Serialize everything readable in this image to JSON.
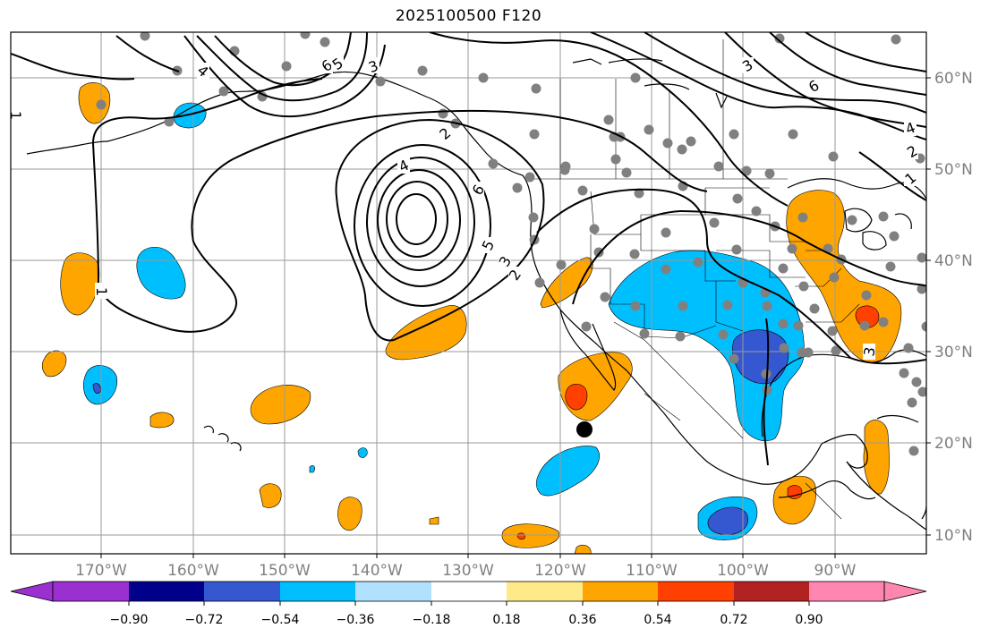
{
  "title": "2025100500 F120",
  "longitude_labels": [
    "170°W",
    "160°W",
    "150°W",
    "140°W",
    "130°W",
    "120°W",
    "110°W",
    "100°W",
    "90°W"
  ],
  "latitude_labels": [
    "10°N",
    "20°N",
    "30°N",
    "40°N",
    "50°N",
    "60°N"
  ],
  "colorbar": {
    "tick_labels": [
      "−0.90",
      "−0.72",
      "−0.54",
      "−0.36",
      "−0.18",
      "0.18",
      "0.36",
      "0.54",
      "0.72",
      "0.90"
    ],
    "colors": [
      "#9b30d0",
      "#00008b",
      "#3558d0",
      "#00bfff",
      "#b0e2ff",
      "#ffffff",
      "#ffea8a",
      "#ffa500",
      "#ff4000",
      "#b22222",
      "#ff86b0"
    ]
  },
  "contour_labels": [
    "6",
    "5",
    "3",
    "4",
    "6",
    "5",
    "3",
    "2",
    "4",
    "1",
    "3",
    "6",
    "4",
    "2",
    "1",
    "1",
    "3",
    "2"
  ],
  "palette": {
    "blue_shade": "#00bfff",
    "dark_blue_shade": "#3558d0",
    "orange_shade": "#ffa500",
    "red_shade": "#ff4000",
    "station_dot": "#808080"
  }
}
